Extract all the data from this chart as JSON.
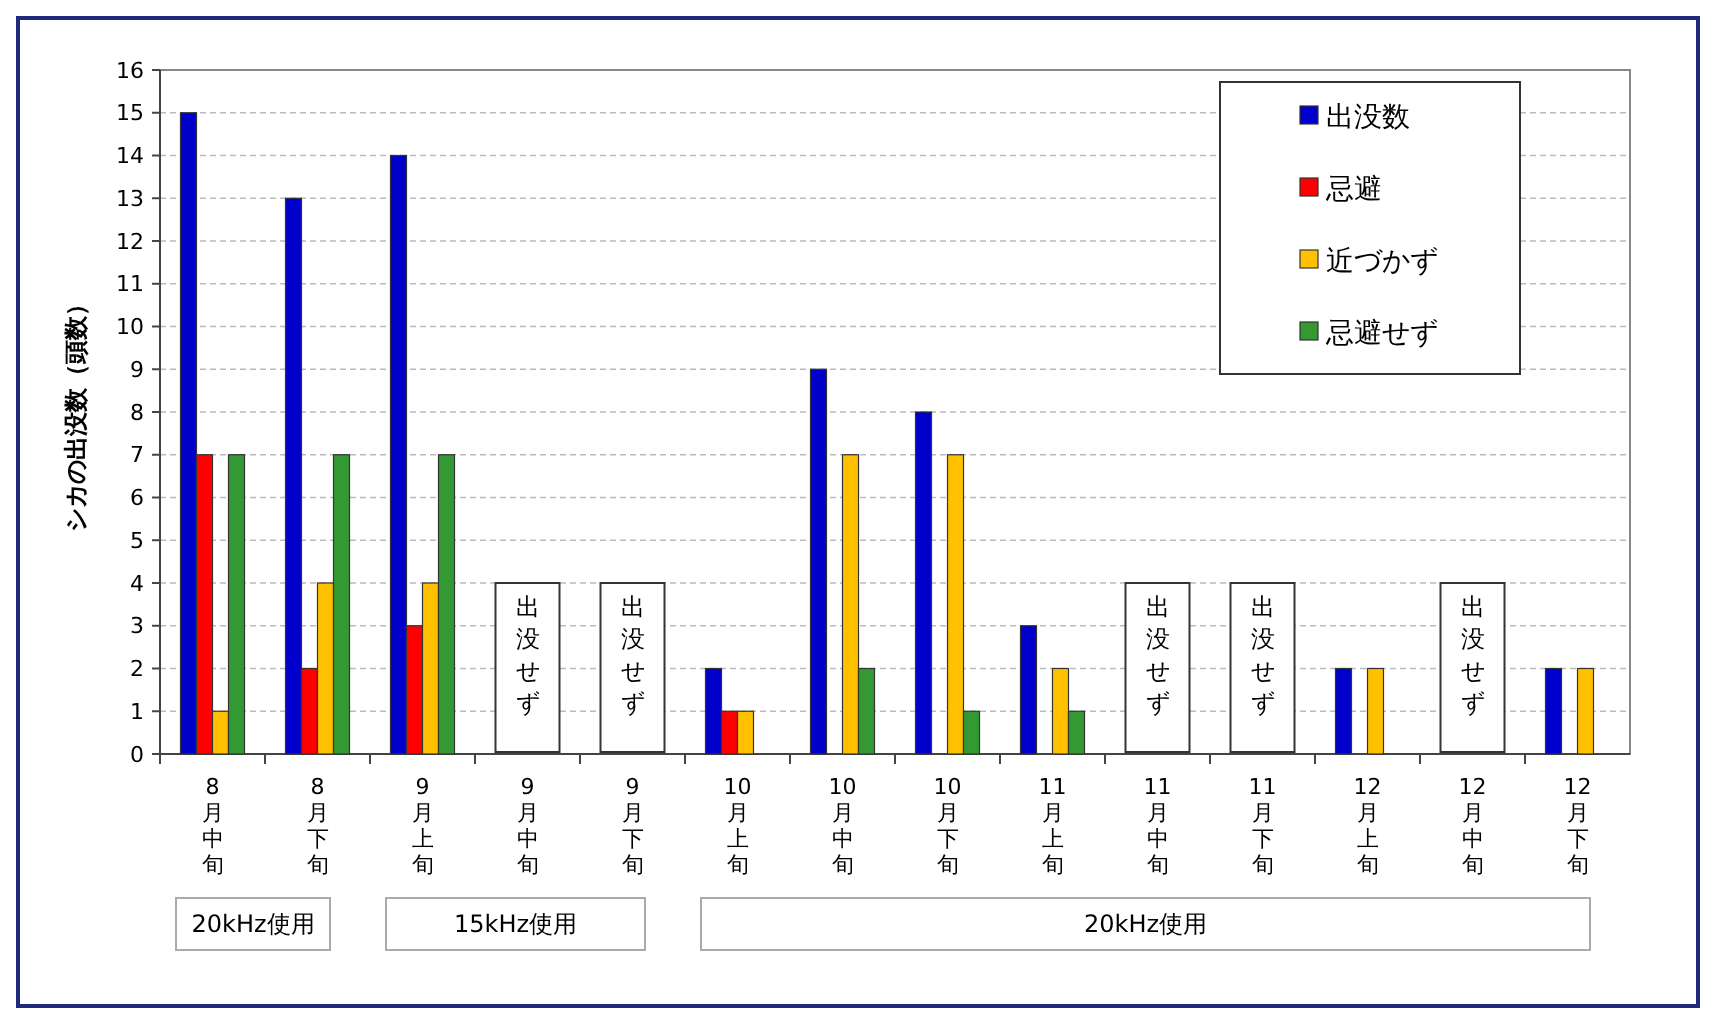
{
  "chart_data": {
    "type": "bar",
    "ylabel": "シカの出没数（頭数）",
    "categories": [
      "8月中旬",
      "8月下旬",
      "9月上旬",
      "9月中旬",
      "9月下旬",
      "10月上旬",
      "10月中旬",
      "10月下旬",
      "11月上旬",
      "11月中旬",
      "11月下旬",
      "12月上旬",
      "12月中旬",
      "12月下旬"
    ],
    "series": [
      {
        "name": "出没数",
        "color": "#0000cc",
        "values": [
          15,
          13,
          14,
          null,
          null,
          2,
          9,
          8,
          3,
          null,
          null,
          2,
          null,
          2
        ]
      },
      {
        "name": "忌避",
        "color": "#ff0000",
        "values": [
          7,
          2,
          3,
          null,
          null,
          1,
          0,
          0,
          0,
          null,
          null,
          0,
          null,
          0
        ]
      },
      {
        "name": "近づかず",
        "color": "#ffc000",
        "values": [
          1,
          4,
          4,
          null,
          null,
          1,
          7,
          7,
          2,
          null,
          null,
          2,
          null,
          2
        ]
      },
      {
        "name": "忌避せず",
        "color": "#339933",
        "values": [
          7,
          7,
          7,
          null,
          null,
          0,
          2,
          1,
          1,
          null,
          null,
          0,
          null,
          0
        ]
      }
    ],
    "ylim": [
      0,
      16
    ],
    "yticks": [
      0,
      1,
      2,
      3,
      4,
      5,
      6,
      7,
      8,
      9,
      10,
      11,
      12,
      13,
      14,
      15,
      16
    ],
    "grid": "y",
    "legend": "top right",
    "annotations": [
      "出没せず",
      "出没せず",
      "出没せず",
      "出没せず",
      "出没せず",
      "20kHz使用",
      "15kHz使用",
      "20kHz使用"
    ]
  }
}
